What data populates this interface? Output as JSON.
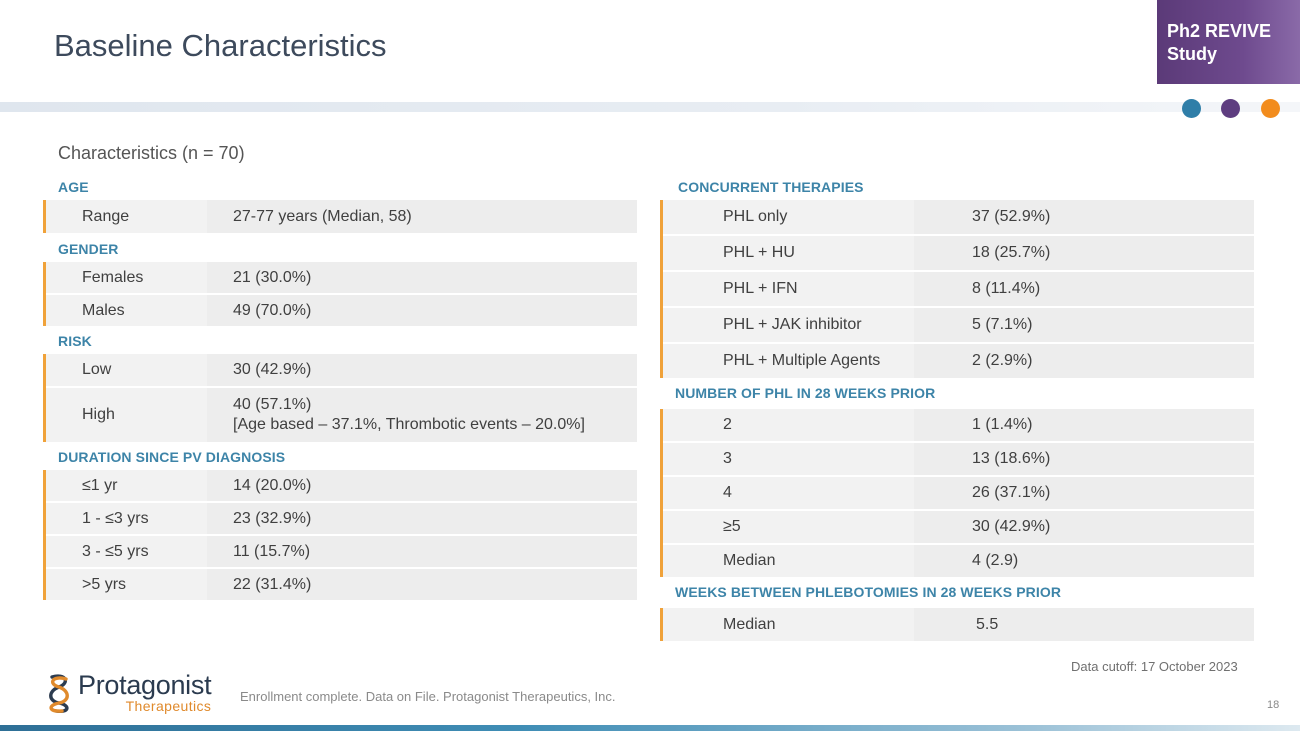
{
  "title": "Baseline Characteristics",
  "badge": {
    "line1": "Ph2 REVIVE",
    "line2": "Study"
  },
  "colors": {
    "accent_blue": "#3d84a8",
    "accent_orange": "#f0a23a",
    "purple": "#5b3a78",
    "dot1": "#2f7ea8",
    "dot2": "#5e3d80",
    "dot3": "#f28c1d"
  },
  "subtitle": "Characteristics (n = 70)",
  "left": {
    "age": {
      "heading": "AGE",
      "rows": [
        {
          "label": "Range",
          "value": "27-77 years (Median, 58)"
        }
      ]
    },
    "gender": {
      "heading": "GENDER",
      "rows": [
        {
          "label": "Females",
          "value": "21 (30.0%)"
        },
        {
          "label": "Males",
          "value": "49 (70.0%)"
        }
      ]
    },
    "risk": {
      "heading": "RISK",
      "rows": [
        {
          "label": "Low",
          "value": "30 (42.9%)"
        },
        {
          "label": "High",
          "value": "40 (57.1%)",
          "value2": "[Age based – 37.1%, Thrombotic events – 20.0%]"
        }
      ]
    },
    "duration": {
      "heading": "DURATION SINCE PV DIAGNOSIS",
      "rows": [
        {
          "label": "≤1 yr",
          "value": "14 (20.0%)"
        },
        {
          "label": "1 - ≤3 yrs",
          "value": "23 (32.9%)"
        },
        {
          "label": "3 - ≤5 yrs",
          "value": "11 (15.7%)"
        },
        {
          "label": ">5 yrs",
          "value": "22 (31.4%)"
        }
      ]
    }
  },
  "right": {
    "concurrent": {
      "heading": "CONCURRENT THERAPIES",
      "rows": [
        {
          "label": "PHL only",
          "value": "37 (52.9%)"
        },
        {
          "label": "PHL + HU",
          "value": "18 (25.7%)"
        },
        {
          "label": "PHL + IFN",
          "value": "8 (11.4%)"
        },
        {
          "label": "PHL + JAK inhibitor",
          "value": "5 (7.1%)"
        },
        {
          "label": "PHL + Multiple Agents",
          "value": "2 (2.9%)"
        }
      ]
    },
    "phl_prior": {
      "heading": "NUMBER OF PHL IN 28 WEEKS PRIOR",
      "rows": [
        {
          "label": "2",
          "value": "1 (1.4%)"
        },
        {
          "label": "3",
          "value": "13 (18.6%)"
        },
        {
          "label": "4",
          "value": "26 (37.1%)"
        },
        {
          "label": "≥5",
          "value": "30 (42.9%)"
        },
        {
          "label": "Median",
          "value": "4 (2.9)"
        }
      ]
    },
    "weeks_between": {
      "heading": "WEEKS BETWEEN PHLEBOTOMIES IN 28 WEEKS PRIOR",
      "rows": [
        {
          "label": "Median",
          "value": "5.5"
        }
      ]
    }
  },
  "cutoff": "Data cutoff: 17 October 2023",
  "footnote": "Enrollment complete. Data on File. Protagonist Therapeutics, Inc.",
  "page_number": "18",
  "logo": {
    "name": "Protagonist",
    "sub": "Therapeutics"
  }
}
